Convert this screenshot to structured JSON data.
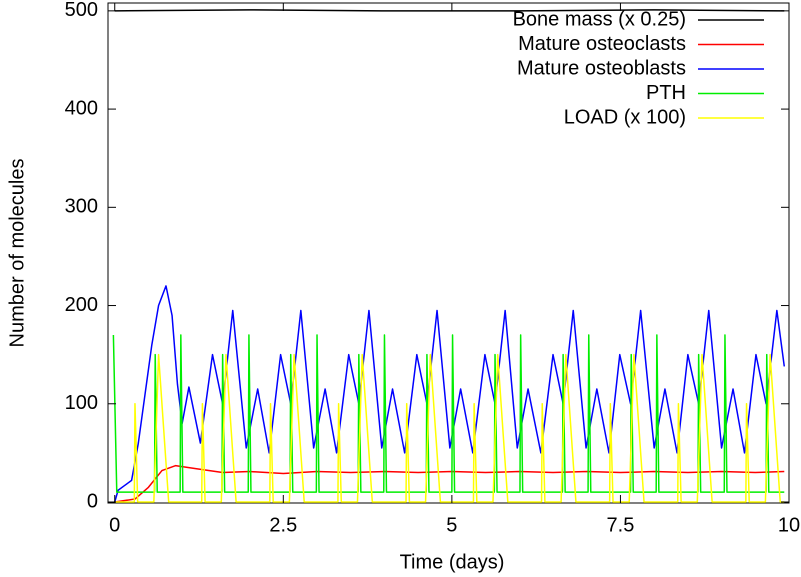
{
  "chart_data": {
    "type": "line",
    "x_label": "Time (days)",
    "y_label": "Number of molecules",
    "xlim": [
      -0.1,
      10
    ],
    "ylim": [
      0,
      508
    ],
    "xticks": [
      0,
      2.5,
      5,
      7.5,
      10
    ],
    "yticks": [
      0,
      100,
      200,
      300,
      400,
      500
    ],
    "legend": "top-right",
    "series": [
      {
        "name": "Bone mass (x 0.25)",
        "color": "#000000",
        "x": [
          0,
          2,
          4,
          6,
          8,
          9.93
        ],
        "values": [
          500,
          501,
          500,
          500,
          501,
          500
        ]
      },
      {
        "name": "Mature osteoclasts",
        "color": "#ff0000",
        "x": [
          0,
          0.3,
          0.5,
          0.7,
          0.9,
          1.2,
          1.6,
          2,
          2.5,
          3,
          3.5,
          4,
          4.5,
          5,
          5.5,
          6,
          6.5,
          7,
          7.5,
          8,
          8.5,
          9,
          9.5,
          9.93
        ],
        "values": [
          0,
          3,
          15,
          32,
          37,
          34,
          30,
          31,
          29,
          31,
          30,
          31,
          30,
          31,
          30,
          31,
          30,
          31,
          30,
          31,
          30,
          31,
          30,
          31
        ]
      },
      {
        "name": "Mature osteoblasts",
        "color": "#0000ff",
        "x": [
          0,
          0.05,
          0.15,
          0.25,
          0.35,
          0.45,
          0.55,
          0.65,
          0.76,
          0.85,
          0.93,
          1.0,
          1.1,
          1.27,
          1.45,
          1.6,
          1.75,
          1.95,
          2.12,
          2.29,
          2.46,
          2.61,
          2.76,
          2.95,
          3.12,
          3.29,
          3.47,
          3.62,
          3.77,
          3.96,
          4.12,
          4.3,
          4.48,
          4.63,
          4.78,
          4.97,
          5.13,
          5.31,
          5.49,
          5.64,
          5.79,
          5.97,
          6.13,
          6.32,
          6.5,
          6.65,
          6.8,
          6.99,
          7.15,
          7.33,
          7.49,
          7.65,
          7.8,
          8.0,
          8.16,
          8.34,
          8.5,
          8.66,
          8.81,
          9.0,
          9.17,
          9.34,
          9.51,
          9.66,
          9.82,
          9.93
        ],
        "values": [
          0,
          12,
          17,
          22,
          60,
          110,
          160,
          200,
          220,
          190,
          120,
          80,
          117,
          60,
          150,
          100,
          195,
          55,
          115,
          50,
          150,
          100,
          195,
          55,
          115,
          50,
          150,
          100,
          195,
          55,
          115,
          50,
          150,
          100,
          195,
          55,
          115,
          50,
          150,
          100,
          195,
          55,
          115,
          50,
          150,
          100,
          195,
          55,
          115,
          50,
          150,
          100,
          195,
          55,
          115,
          50,
          150,
          100,
          195,
          55,
          115,
          50,
          150,
          100,
          195,
          138
        ]
      },
      {
        "name": "PTH",
        "color": "#00ee00",
        "x": [
          -0.02,
          0.03,
          0.59,
          0.6,
          0.63,
          0.97,
          0.98,
          1.01,
          1.59,
          1.6,
          1.63,
          1.98,
          1.99,
          2.02,
          2.6,
          2.61,
          2.64,
          2.99,
          3.0,
          3.03,
          3.61,
          3.62,
          3.65,
          3.99,
          4.0,
          4.03,
          4.62,
          4.63,
          4.66,
          5.0,
          5.01,
          5.04,
          5.63,
          5.64,
          5.67,
          6.01,
          6.02,
          6.05,
          6.64,
          6.65,
          6.68,
          7.02,
          7.03,
          7.06,
          7.65,
          7.66,
          7.69,
          8.03,
          8.04,
          8.07,
          8.65,
          8.66,
          8.69,
          9.04,
          9.05,
          9.08,
          9.66,
          9.67,
          9.7,
          9.93
        ],
        "values": [
          170,
          10,
          10,
          150,
          10,
          10,
          170,
          10,
          10,
          150,
          10,
          10,
          170,
          10,
          10,
          150,
          10,
          10,
          170,
          10,
          10,
          150,
          10,
          10,
          170,
          10,
          10,
          150,
          10,
          10,
          170,
          10,
          10,
          150,
          10,
          10,
          170,
          10,
          10,
          150,
          10,
          10,
          170,
          10,
          10,
          150,
          10,
          10,
          170,
          10,
          10,
          150,
          10,
          10,
          170,
          10,
          10,
          150,
          10,
          10
        ]
      },
      {
        "name": "LOAD (x 100)",
        "color": "#ffff00",
        "x": [
          0,
          0.29,
          0.3,
          0.34,
          0.58,
          0.65,
          0.8,
          1.29,
          1.3,
          1.34,
          1.58,
          1.65,
          1.8,
          2.3,
          2.31,
          2.35,
          2.59,
          2.66,
          2.81,
          3.31,
          3.32,
          3.36,
          3.6,
          3.67,
          3.82,
          4.32,
          4.33,
          4.37,
          4.61,
          4.68,
          4.83,
          5.32,
          5.33,
          5.37,
          5.61,
          5.68,
          5.83,
          6.33,
          6.34,
          6.38,
          6.62,
          6.69,
          6.84,
          7.34,
          7.35,
          7.39,
          7.63,
          7.7,
          7.85,
          8.35,
          8.36,
          8.4,
          8.64,
          8.71,
          8.86,
          9.36,
          9.37,
          9.41,
          9.65,
          9.72,
          9.87,
          9.93
        ],
        "values": [
          0,
          0,
          100,
          0,
          0,
          150,
          0,
          0,
          100,
          0,
          0,
          150,
          0,
          0,
          100,
          0,
          0,
          150,
          0,
          0,
          100,
          0,
          0,
          150,
          0,
          0,
          100,
          0,
          0,
          150,
          0,
          0,
          100,
          0,
          0,
          150,
          0,
          0,
          100,
          0,
          0,
          150,
          0,
          0,
          100,
          0,
          0,
          150,
          0,
          0,
          100,
          0,
          0,
          150,
          0,
          0,
          100,
          0,
          0,
          150,
          0,
          0
        ]
      }
    ]
  }
}
